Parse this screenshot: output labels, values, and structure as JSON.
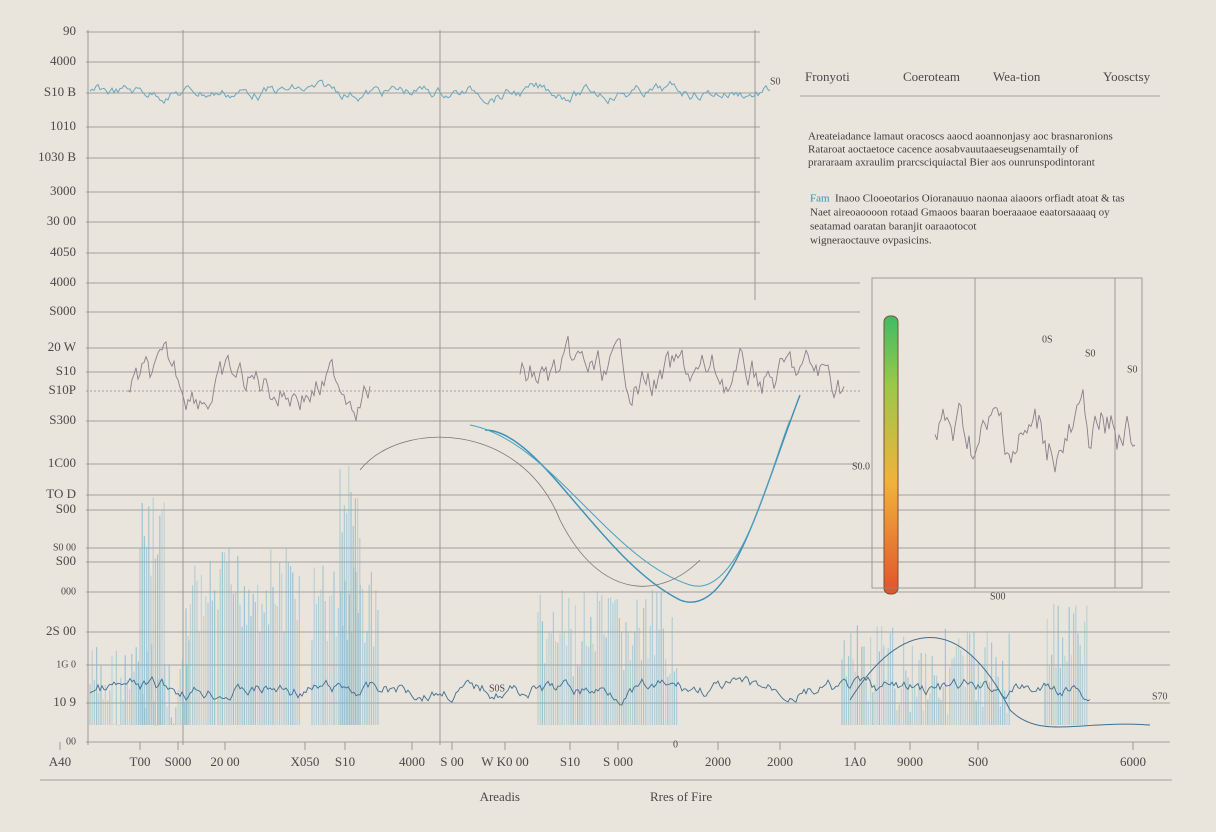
{
  "y_axis": {
    "labels": [
      "90",
      "4000",
      "S10 B",
      "1010",
      "1030 B",
      "3000",
      "30 00",
      "4050",
      "4000",
      "S000",
      "20 W",
      "S10",
      "S10P",
      "S300",
      "1C00",
      "TO D",
      "S00",
      "S0 00",
      "S00",
      "000",
      "2S 00",
      "1G 0",
      "10 9",
      "00"
    ]
  },
  "x_axis": {
    "labels": [
      "A40",
      "T00",
      "S000",
      "20 00",
      "X050",
      "S10",
      "4000",
      "S 00",
      "W K0 00",
      "S10",
      "S 000",
      "2000",
      "2000",
      "1A0",
      "9000",
      "S00",
      "6000"
    ],
    "titles": [
      "Areadis",
      "Rres of Fire"
    ]
  },
  "legend": {
    "items": [
      "Fronyoti",
      "Coeroteam",
      "Wea-tion",
      "Yoosctsy"
    ]
  },
  "notes": {
    "paragraph_1": [
      "Areateiadance lamaut oracoscs aaocd aoannonjasy aoc brasnaronions",
      "Rataroat aoctaetoce cacence aosabvauutaaeseugsenamtaily of",
      "prararaam axraulim prarcsciquiactal Bier aos ounrunspodintorant"
    ],
    "paragraph_2": {
      "lead": "Fam",
      "lines": [
        "Inaoo Clooeotarios Oioranauuo naonaa aiaoors orfiadt atoat & tas",
        "Naet aireoaoooon rotaad Gmaoos baaran boeraaaoe eaatorsaaaaq oy",
        "seatamad oaratan baranjit oaraaotocot",
        "wigneraoctauve ovpasicins."
      ]
    }
  },
  "annotations": [
    "S0",
    "S0.0",
    "0S",
    "S0",
    "S0",
    "S00",
    "S0S",
    "S70",
    "0"
  ]
}
